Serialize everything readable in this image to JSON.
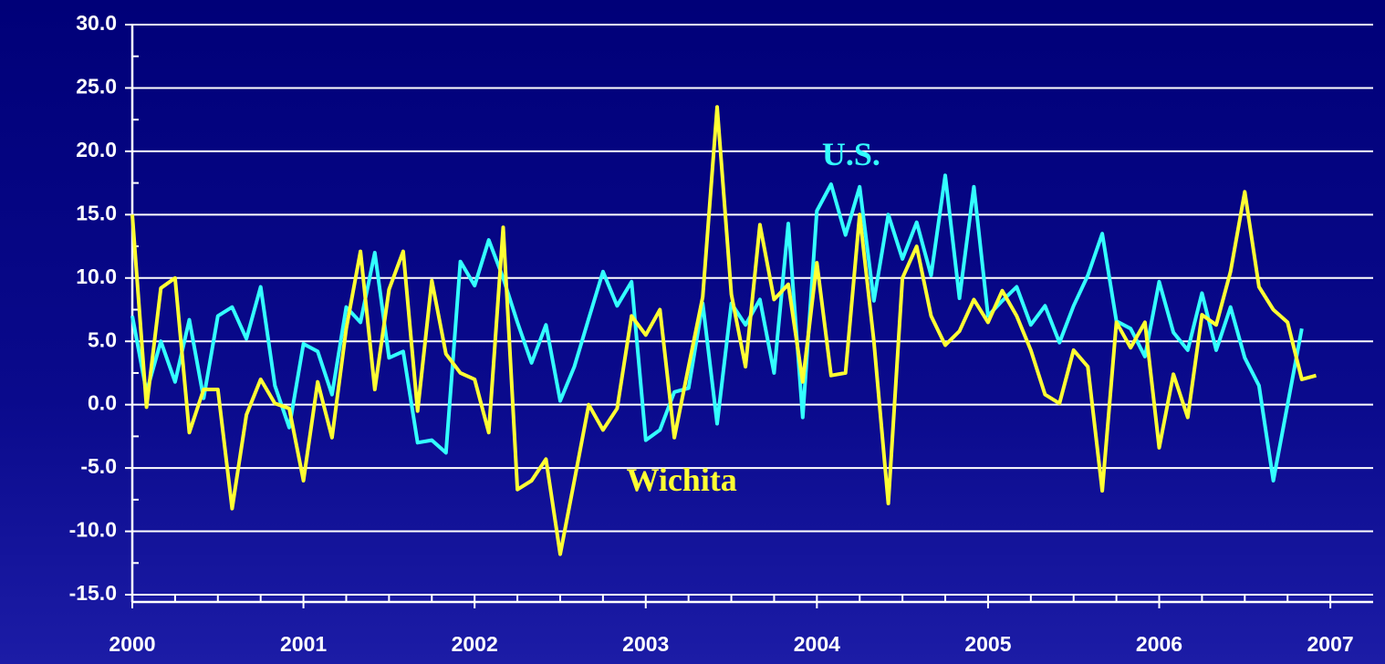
{
  "chart_data": {
    "type": "line",
    "annotations": [
      {
        "text": "U.S.",
        "x": 2004.2,
        "y": 19.5,
        "color": "#33ffff"
      },
      {
        "text": "Wichita",
        "x": 2003.21,
        "y": -6.2,
        "color": "#ffff33"
      }
    ],
    "x": [
      2000,
      2000.083,
      2000.167,
      2000.25,
      2000.333,
      2000.417,
      2000.5,
      2000.583,
      2000.667,
      2000.75,
      2000.833,
      2000.917,
      2001,
      2001.083,
      2001.167,
      2001.25,
      2001.333,
      2001.417,
      2001.5,
      2001.583,
      2001.667,
      2001.75,
      2001.833,
      2001.917,
      2002,
      2002.083,
      2002.167,
      2002.25,
      2002.333,
      2002.417,
      2002.5,
      2002.583,
      2002.667,
      2002.75,
      2002.833,
      2002.917,
      2003,
      2003.083,
      2003.167,
      2003.25,
      2003.333,
      2003.417,
      2003.5,
      2003.583,
      2003.667,
      2003.75,
      2003.833,
      2003.917,
      2004,
      2004.083,
      2004.167,
      2004.25,
      2004.333,
      2004.417,
      2004.5,
      2004.583,
      2004.667,
      2004.75,
      2004.833,
      2004.917,
      2005,
      2005.083,
      2005.167,
      2005.25,
      2005.333,
      2005.417,
      2005.5,
      2005.583,
      2005.667,
      2005.75,
      2005.833,
      2005.917,
      2006,
      2006.083,
      2006.167,
      2006.25,
      2006.333,
      2006.417,
      2006.5,
      2006.583,
      2006.667,
      2006.75,
      2006.833,
      2006.917
    ],
    "series": [
      {
        "name": "U.S.",
        "color": "#33ffff",
        "values": [
          7,
          1,
          5,
          1.8,
          6.7,
          0.5,
          7,
          7.7,
          5.2,
          9.3,
          1.5,
          -1.8,
          4.8,
          4.2,
          0.8,
          7.7,
          6.5,
          12,
          3.7,
          4.2,
          -3,
          -2.8,
          -3.8,
          11.3,
          9.4,
          13,
          10,
          6.5,
          3.3,
          6.3,
          0.3,
          3,
          6.8,
          10.5,
          7.8,
          9.7,
          -2.8,
          -2,
          1,
          1.3,
          8,
          -1.5,
          8,
          6.3,
          8.3,
          2.5,
          14.3,
          -1,
          15.3,
          17.4,
          13.4,
          17.2,
          8.2,
          15,
          11.5,
          14.4,
          10.2,
          18.1,
          8.4,
          17.2,
          7,
          8.2,
          9.3,
          6.3,
          7.8,
          4.9,
          7.8,
          10.2,
          13.5,
          6.6,
          6,
          3.8,
          9.7,
          5.7,
          4.3,
          8.8,
          4.3,
          7.7,
          3.7,
          1.5,
          -6,
          0,
          6,
          null
        ]
      },
      {
        "name": "Wichita",
        "color": "#ffff33",
        "values": [
          15,
          -0.2,
          9.2,
          10,
          -2.2,
          1.2,
          1.2,
          -8.2,
          -0.8,
          2,
          0.1,
          -0.3,
          -6,
          1.8,
          -2.6,
          6,
          12.1,
          1.2,
          9.1,
          12.1,
          -0.5,
          9.8,
          4,
          2.5,
          2,
          -2.2,
          14,
          -6.7,
          -6,
          -4.3,
          -11.8,
          -6,
          0,
          -2,
          -0.3,
          7,
          5.5,
          7.5,
          -2.6,
          3,
          8.5,
          23.5,
          8.7,
          3,
          14.2,
          8.3,
          9.5,
          1.8,
          11.2,
          2.3,
          2.5,
          15,
          5,
          -7.8,
          10,
          12.5,
          7,
          4.7,
          5.8,
          8.3,
          6.5,
          9,
          7,
          4.3,
          0.8,
          0.1,
          4.3,
          3,
          -6.8,
          6.5,
          4.5,
          6.5,
          -3.4,
          2.4,
          -1,
          7.1,
          6.3,
          10.5,
          16.8,
          9.3,
          7.5,
          6.5,
          2,
          2.3
        ]
      }
    ],
    "xlim": [
      2000,
      2007.25
    ],
    "xticks": [
      2000,
      2001,
      2002,
      2003,
      2004,
      2005,
      2006,
      2007
    ],
    "xminorticks": [
      2000.25,
      2000.5,
      2000.75,
      2001.25,
      2001.5,
      2001.75,
      2002.25,
      2002.5,
      2002.75,
      2003.25,
      2003.5,
      2003.75,
      2004.25,
      2004.5,
      2004.75,
      2005.25,
      2005.5,
      2005.75,
      2006.25,
      2006.5,
      2006.75
    ],
    "ylim": [
      -15,
      30
    ],
    "yticks": [
      {
        "value": -15,
        "label": "-15.0"
      },
      {
        "value": -10,
        "label": "-10.0"
      },
      {
        "value": -5,
        "label": "-5.0"
      },
      {
        "value": 0,
        "label": "0.0"
      },
      {
        "value": 5,
        "label": "5.0"
      },
      {
        "value": 10,
        "label": "10.0"
      },
      {
        "value": 15,
        "label": "15.0"
      },
      {
        "value": 20,
        "label": "20.0"
      },
      {
        "value": 25,
        "label": "25.0"
      },
      {
        "value": 30,
        "label": "30.0"
      }
    ],
    "yminorticks": [
      -12.5,
      -7.5,
      -2.5,
      2.5,
      7.5,
      12.5,
      17.5,
      22.5,
      27.5
    ],
    "grid": true
  }
}
